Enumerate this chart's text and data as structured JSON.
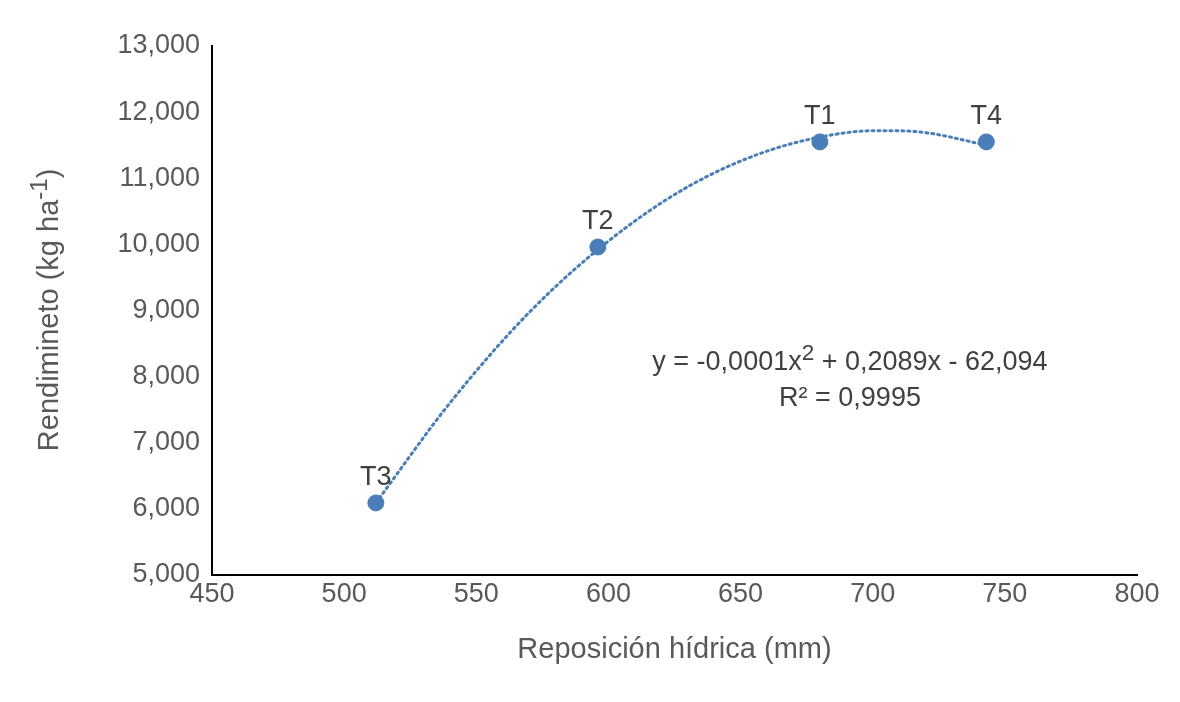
{
  "chart_data": {
    "type": "scatter",
    "xlabel": "Reposición hídrica (mm)",
    "ylabel": "Rendimineto  (kg ha$^{-1}$)",
    "series": [
      {
        "color": "#4a7ebb",
        "x": [
          512,
          596,
          680,
          743
        ],
        "values": [
          6090,
          9960,
          11550,
          11550
        ],
        "value_labels": [
          "T3",
          "T2",
          "T1",
          "T4"
        ],
        "marker": "circle"
      },
      {
        "type": "line",
        "color": "#4a7ebb",
        "line_style": "dotted",
        "marker": "none",
        "x": [
          512,
          540,
          570,
          600,
          630,
          660,
          690,
          705,
          720,
          743
        ],
        "values": [
          6090,
          7600,
          8970,
          10050,
          10870,
          11410,
          11690,
          11720,
          11690,
          11500
        ]
      }
    ],
    "annotations": [
      "y = -0,0001x$^{2}$ + 0,2089x - 62,094",
      "R² = 0,9995"
    ],
    "xlim": [
      450,
      800
    ],
    "xticks": [
      450,
      500,
      550,
      600,
      650,
      700,
      750,
      800
    ],
    "ylim": [
      5000,
      13000
    ],
    "yticks": [
      {
        "value": 5000,
        "label": "5,000"
      },
      {
        "value": 6000,
        "label": "6,000"
      },
      {
        "value": 7000,
        "label": "7,000"
      },
      {
        "value": 8000,
        "label": "8,000"
      },
      {
        "value": 9000,
        "label": "9,000"
      },
      {
        "value": 10000,
        "label": "10,000"
      },
      {
        "value": 11000,
        "label": "11,000"
      },
      {
        "value": 12000,
        "label": "12,000"
      },
      {
        "value": 13000,
        "label": "13,000"
      }
    ],
    "grid": false,
    "legend": false
  }
}
